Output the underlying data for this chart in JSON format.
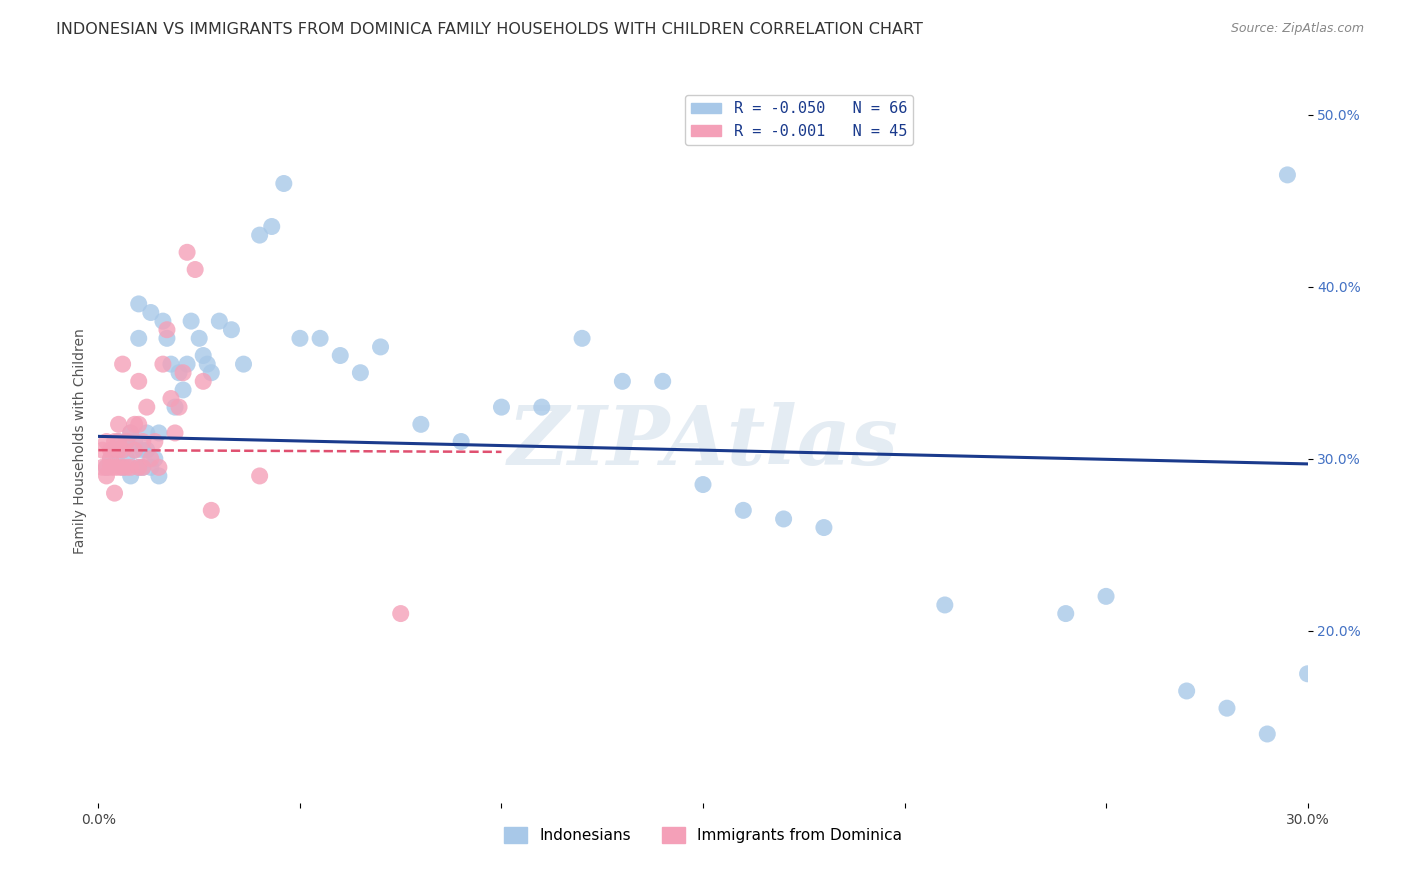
{
  "title": "INDONESIAN VS IMMIGRANTS FROM DOMINICA FAMILY HOUSEHOLDS WITH CHILDREN CORRELATION CHART",
  "source": "Source: ZipAtlas.com",
  "ylabel": "Family Households with Children",
  "xlim": [
    0.0,
    0.3
  ],
  "ylim": [
    0.1,
    0.52
  ],
  "x_ticks": [
    0.0,
    0.05,
    0.1,
    0.15,
    0.2,
    0.25,
    0.3
  ],
  "x_tick_labels": [
    "0.0%",
    "",
    "",
    "",
    "",
    "",
    "30.0%"
  ],
  "y_ticks_right": [
    0.2,
    0.3,
    0.4,
    0.5
  ],
  "y_tick_labels_right": [
    "20.0%",
    "30.0%",
    "40.0%",
    "50.0%"
  ],
  "legend_entries": [
    {
      "label": "R = -0.050   N = 66",
      "color": "#a8c4e0"
    },
    {
      "label": "R = -0.001   N = 45",
      "color": "#f4a8b8"
    }
  ],
  "legend_labels_bottom": [
    "Indonesians",
    "Immigrants from Dominica"
  ],
  "watermark": "ZIPAtlas",
  "blue_scatter_x": [
    0.002,
    0.003,
    0.004,
    0.005,
    0.006,
    0.006,
    0.007,
    0.007,
    0.008,
    0.008,
    0.009,
    0.009,
    0.01,
    0.01,
    0.01,
    0.011,
    0.011,
    0.012,
    0.012,
    0.013,
    0.013,
    0.014,
    0.015,
    0.015,
    0.016,
    0.017,
    0.018,
    0.019,
    0.02,
    0.021,
    0.022,
    0.023,
    0.025,
    0.026,
    0.027,
    0.028,
    0.03,
    0.033,
    0.036,
    0.04,
    0.043,
    0.046,
    0.05,
    0.055,
    0.06,
    0.065,
    0.07,
    0.08,
    0.09,
    0.1,
    0.11,
    0.12,
    0.13,
    0.14,
    0.15,
    0.16,
    0.17,
    0.18,
    0.21,
    0.24,
    0.25,
    0.27,
    0.28,
    0.29,
    0.295,
    0.3
  ],
  "blue_scatter_y": [
    0.295,
    0.3,
    0.305,
    0.31,
    0.295,
    0.305,
    0.3,
    0.31,
    0.29,
    0.315,
    0.305,
    0.31,
    0.295,
    0.37,
    0.39,
    0.305,
    0.295,
    0.315,
    0.305,
    0.295,
    0.385,
    0.3,
    0.315,
    0.29,
    0.38,
    0.37,
    0.355,
    0.33,
    0.35,
    0.34,
    0.355,
    0.38,
    0.37,
    0.36,
    0.355,
    0.35,
    0.38,
    0.375,
    0.355,
    0.43,
    0.435,
    0.46,
    0.37,
    0.37,
    0.36,
    0.35,
    0.365,
    0.32,
    0.31,
    0.33,
    0.33,
    0.37,
    0.345,
    0.345,
    0.285,
    0.27,
    0.265,
    0.26,
    0.215,
    0.21,
    0.22,
    0.165,
    0.155,
    0.14,
    0.465,
    0.175
  ],
  "pink_scatter_x": [
    0.001,
    0.001,
    0.002,
    0.002,
    0.002,
    0.003,
    0.003,
    0.003,
    0.004,
    0.004,
    0.004,
    0.005,
    0.005,
    0.005,
    0.005,
    0.006,
    0.006,
    0.006,
    0.007,
    0.007,
    0.008,
    0.008,
    0.009,
    0.009,
    0.01,
    0.01,
    0.01,
    0.011,
    0.011,
    0.012,
    0.013,
    0.014,
    0.015,
    0.016,
    0.017,
    0.018,
    0.019,
    0.02,
    0.021,
    0.022,
    0.024,
    0.026,
    0.028,
    0.04,
    0.075
  ],
  "pink_scatter_y": [
    0.295,
    0.305,
    0.295,
    0.31,
    0.29,
    0.3,
    0.305,
    0.295,
    0.295,
    0.31,
    0.28,
    0.295,
    0.305,
    0.31,
    0.32,
    0.305,
    0.295,
    0.355,
    0.31,
    0.295,
    0.295,
    0.315,
    0.32,
    0.305,
    0.295,
    0.32,
    0.345,
    0.31,
    0.295,
    0.33,
    0.3,
    0.31,
    0.295,
    0.355,
    0.375,
    0.335,
    0.315,
    0.33,
    0.35,
    0.42,
    0.41,
    0.345,
    0.27,
    0.29,
    0.21
  ],
  "blue_line_x": [
    0.0,
    0.3
  ],
  "blue_line_y": [
    0.313,
    0.297
  ],
  "pink_line_x": [
    0.0,
    0.1
  ],
  "pink_line_y": [
    0.305,
    0.304
  ],
  "blue_color": "#a8c8e8",
  "pink_color": "#f4a0b8",
  "blue_line_color": "#1a3a8c",
  "pink_line_color": "#e05070",
  "grid_color": "#cccccc",
  "background_color": "#ffffff",
  "title_fontsize": 11.5,
  "axis_label_fontsize": 10,
  "tick_fontsize": 10,
  "watermark_color": "#c5d5e5",
  "watermark_alpha": 0.45
}
